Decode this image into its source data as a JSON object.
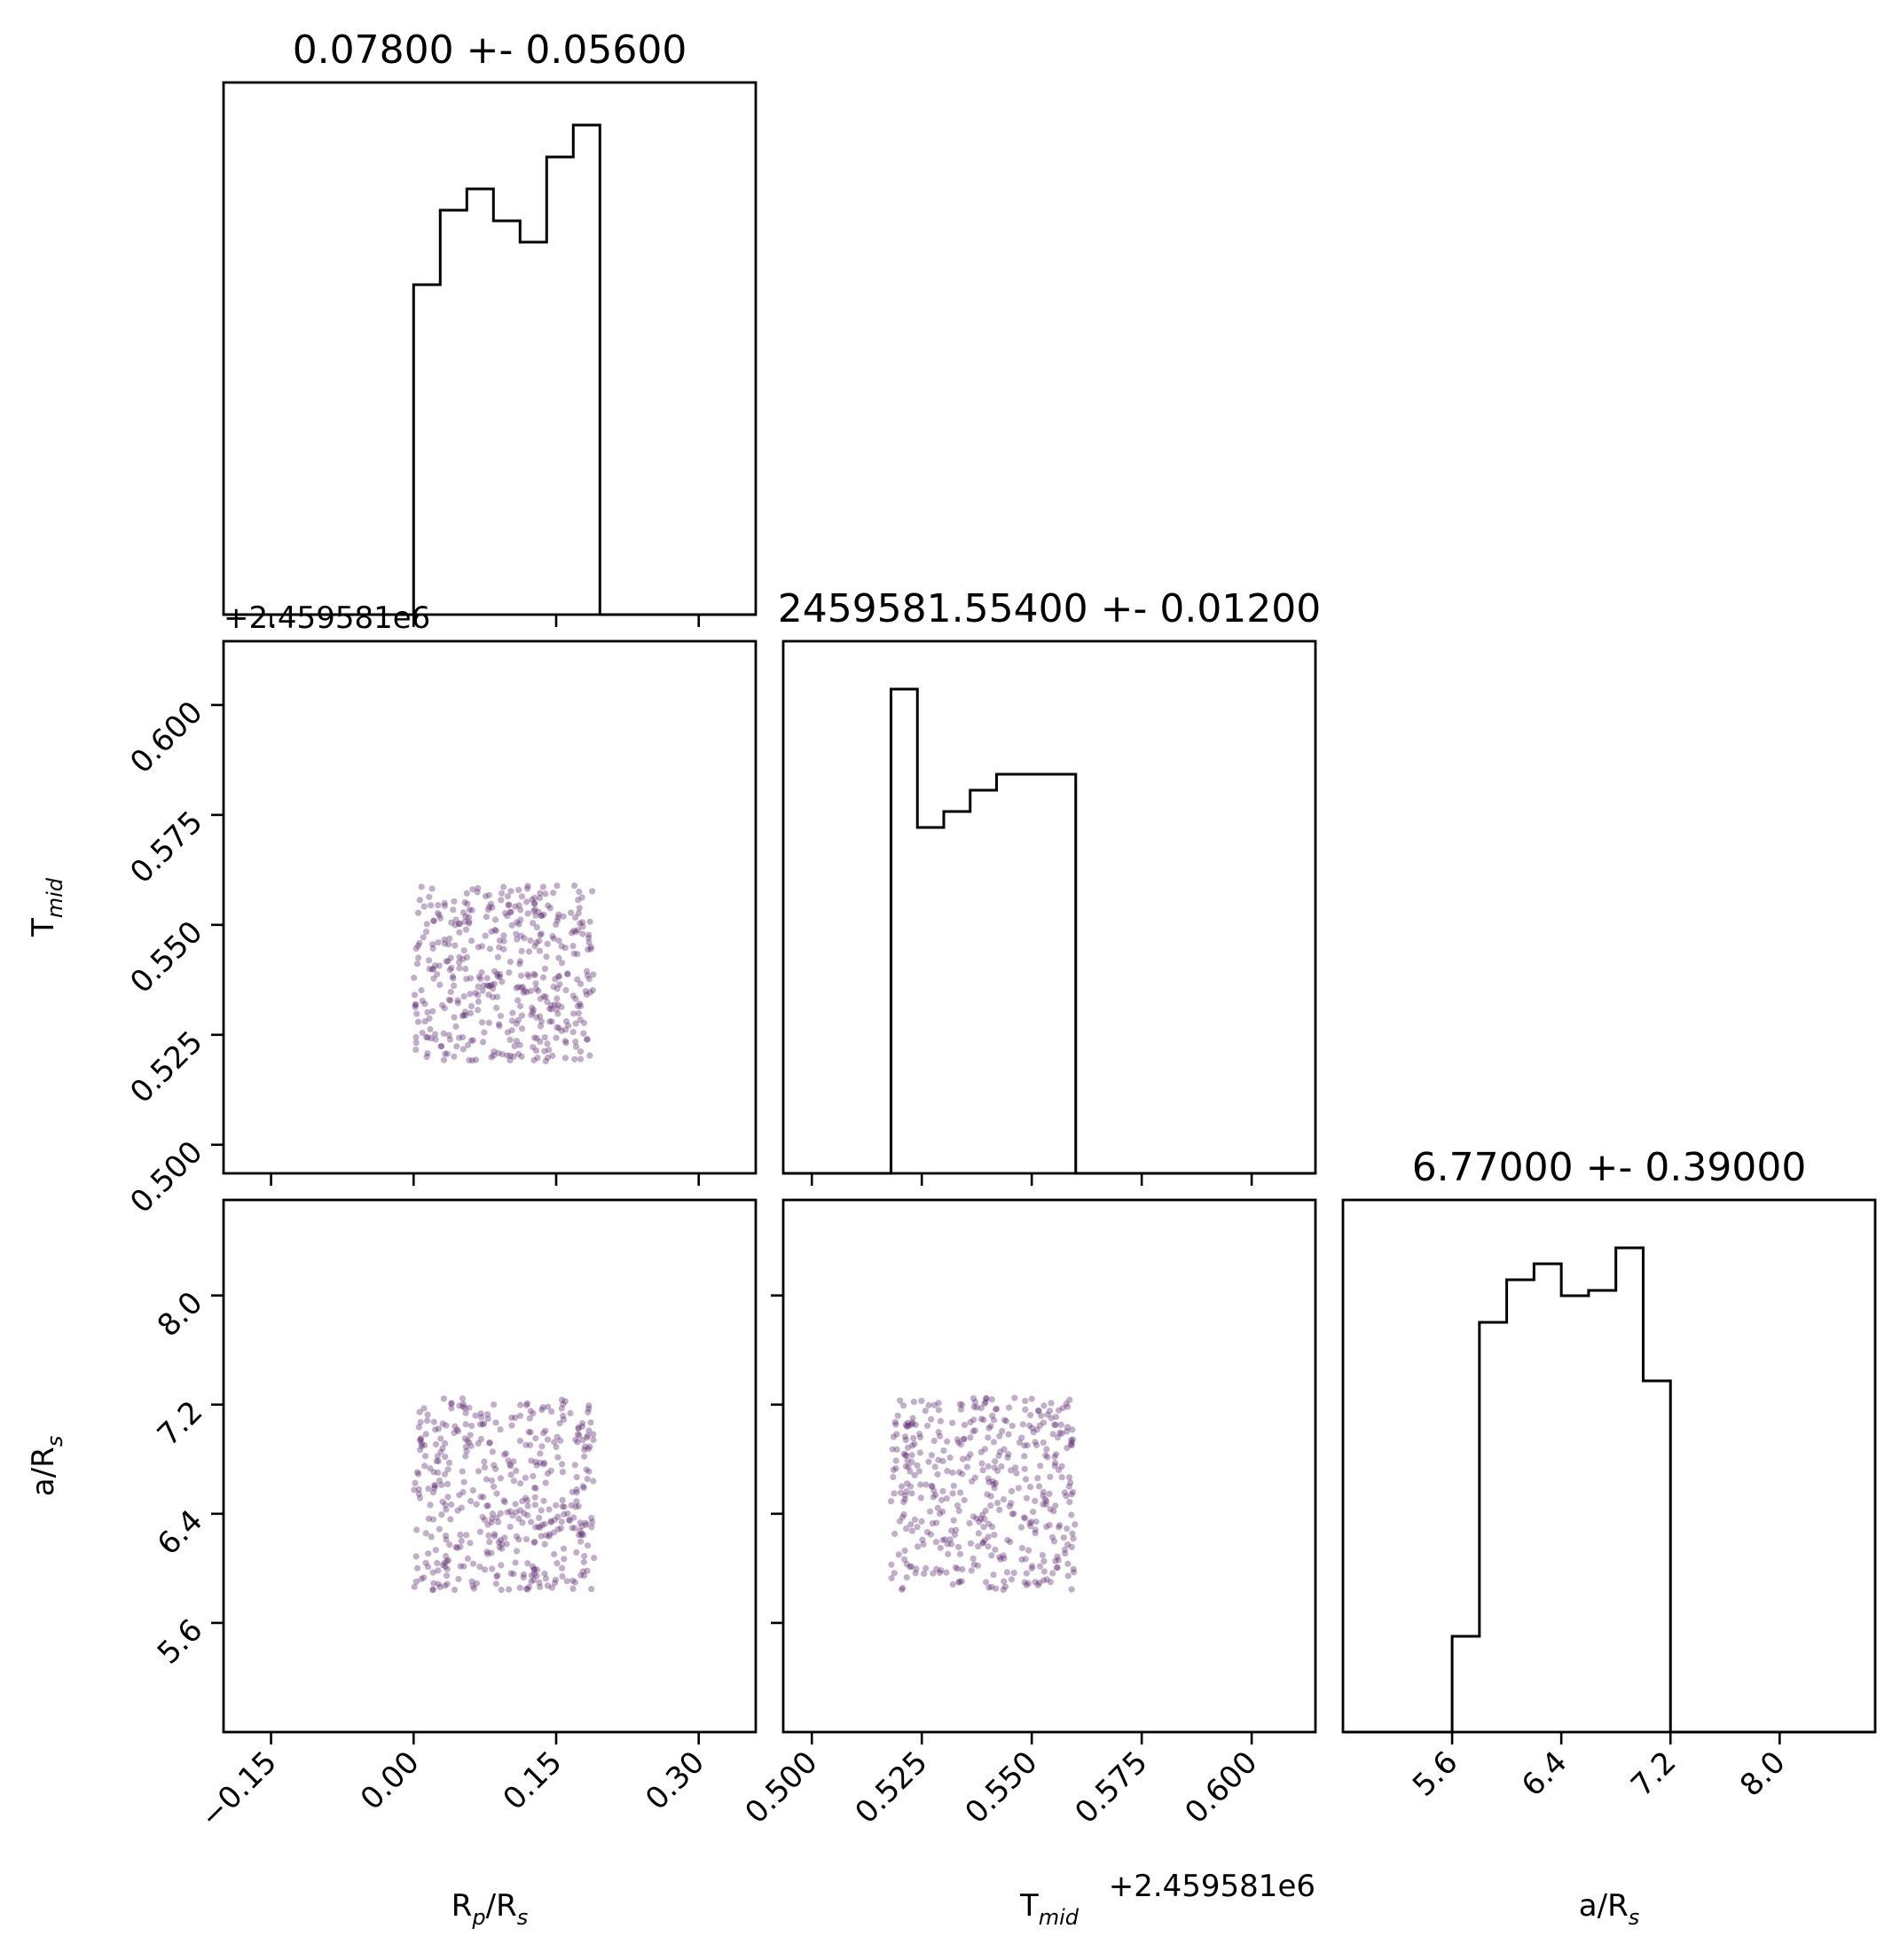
{
  "chart_data": {
    "type": "corner",
    "parameters": [
      {
        "key": "rp",
        "axis_label": "R",
        "axis_label_sub": "p",
        "axis_label_tail": "/R",
        "axis_label_sub2": "s",
        "title": "0.07800 +- 0.05600",
        "range": [
          -0.2,
          0.36
        ],
        "ticks": [
          -0.15,
          0.0,
          0.15,
          0.3
        ],
        "tick_labels": [
          "−0.15",
          "0.00",
          "0.15",
          "0.30"
        ],
        "offset_label": "",
        "hist": {
          "edges": [
            0.0,
            0.028,
            0.056,
            0.084,
            0.112,
            0.14,
            0.168,
            0.196
          ],
          "counts": [
            0.62,
            0.76,
            0.8,
            0.74,
            0.7,
            0.86,
            0.92
          ]
        }
      },
      {
        "key": "tmid",
        "axis_label": "T",
        "axis_label_sub": "mid",
        "axis_label_tail": "",
        "axis_label_sub2": "",
        "title": "2459581.55400 +- 0.01200",
        "range": [
          0.4935,
          0.6145
        ],
        "ticks": [
          0.5,
          0.525,
          0.55,
          0.575,
          0.6
        ],
        "tick_labels": [
          "0.500",
          "0.525",
          "0.550",
          "0.575",
          "0.600"
        ],
        "offset_label": "+2.459581e6",
        "hist": {
          "edges": [
            0.518,
            0.524,
            0.53,
            0.536,
            0.542,
            0.548,
            0.554,
            0.56
          ],
          "counts": [
            0.91,
            0.65,
            0.68,
            0.72,
            0.75,
            0.75,
            0.75
          ]
        }
      },
      {
        "key": "ars",
        "axis_label": "a/R",
        "axis_label_sub": "s",
        "axis_label_tail": "",
        "axis_label_sub2": "",
        "title": "6.77000 +- 0.39000",
        "range": [
          4.8,
          8.7
        ],
        "ticks": [
          5.6,
          6.4,
          7.2,
          8.0
        ],
        "tick_labels": [
          "5.6",
          "6.4",
          "7.2",
          "8.0"
        ],
        "offset_label": "",
        "hist": {
          "edges": [
            5.6,
            5.8,
            6.0,
            6.2,
            6.4,
            6.6,
            6.8,
            7.0,
            7.2
          ],
          "counts": [
            0.18,
            0.77,
            0.85,
            0.88,
            0.82,
            0.83,
            0.91,
            0.66
          ]
        }
      }
    ],
    "scatter": [
      {
        "x": "rp",
        "y": "tmid",
        "x_range": [
          0.0,
          0.19
        ],
        "y_range": [
          0.519,
          0.559
        ],
        "n_points": 430
      },
      {
        "x": "rp",
        "y": "ars",
        "x_range": [
          0.0,
          0.19
        ],
        "y_range": [
          5.84,
          7.25
        ],
        "n_points": 430
      },
      {
        "x": "tmid",
        "y": "ars",
        "x_range": [
          0.518,
          0.56
        ],
        "y_range": [
          5.84,
          7.25
        ],
        "n_points": 430
      }
    ],
    "colors": {
      "points": "#5b2a6e",
      "lines": "#000000"
    },
    "grid": false
  }
}
